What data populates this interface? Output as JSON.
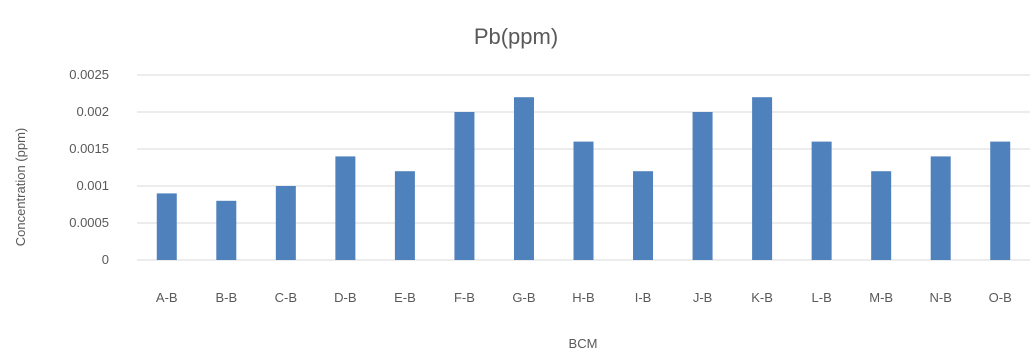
{
  "chart_data": {
    "type": "bar",
    "title": "Pb(ppm)",
    "xlabel": "BCM",
    "ylabel": "Concentration (ppm)",
    "categories": [
      "A-B",
      "B-B",
      "C-B",
      "D-B",
      "E-B",
      "F-B",
      "G-B",
      "H-B",
      "I-B",
      "J-B",
      "K-B",
      "L-B",
      "M-B",
      "N-B",
      "O-B"
    ],
    "series": [
      {
        "values": [
          0.0009,
          0.0008,
          0.001,
          0.0014,
          0.0012,
          0.002,
          0.0022,
          0.0016,
          0.0012,
          0.002,
          0.0022,
          0.0016,
          0.0012,
          0.0014,
          0.0016
        ]
      }
    ],
    "yticks": [
      "0",
      "0.0005",
      "0.001",
      "0.0015",
      "0.002",
      "0.0025"
    ],
    "ylim": [
      0,
      0.0025
    ],
    "grid": true,
    "legend": "none",
    "colors": {
      "bar": "#4F81BD",
      "grid": "#D9D9D9",
      "text": "#595959"
    }
  }
}
